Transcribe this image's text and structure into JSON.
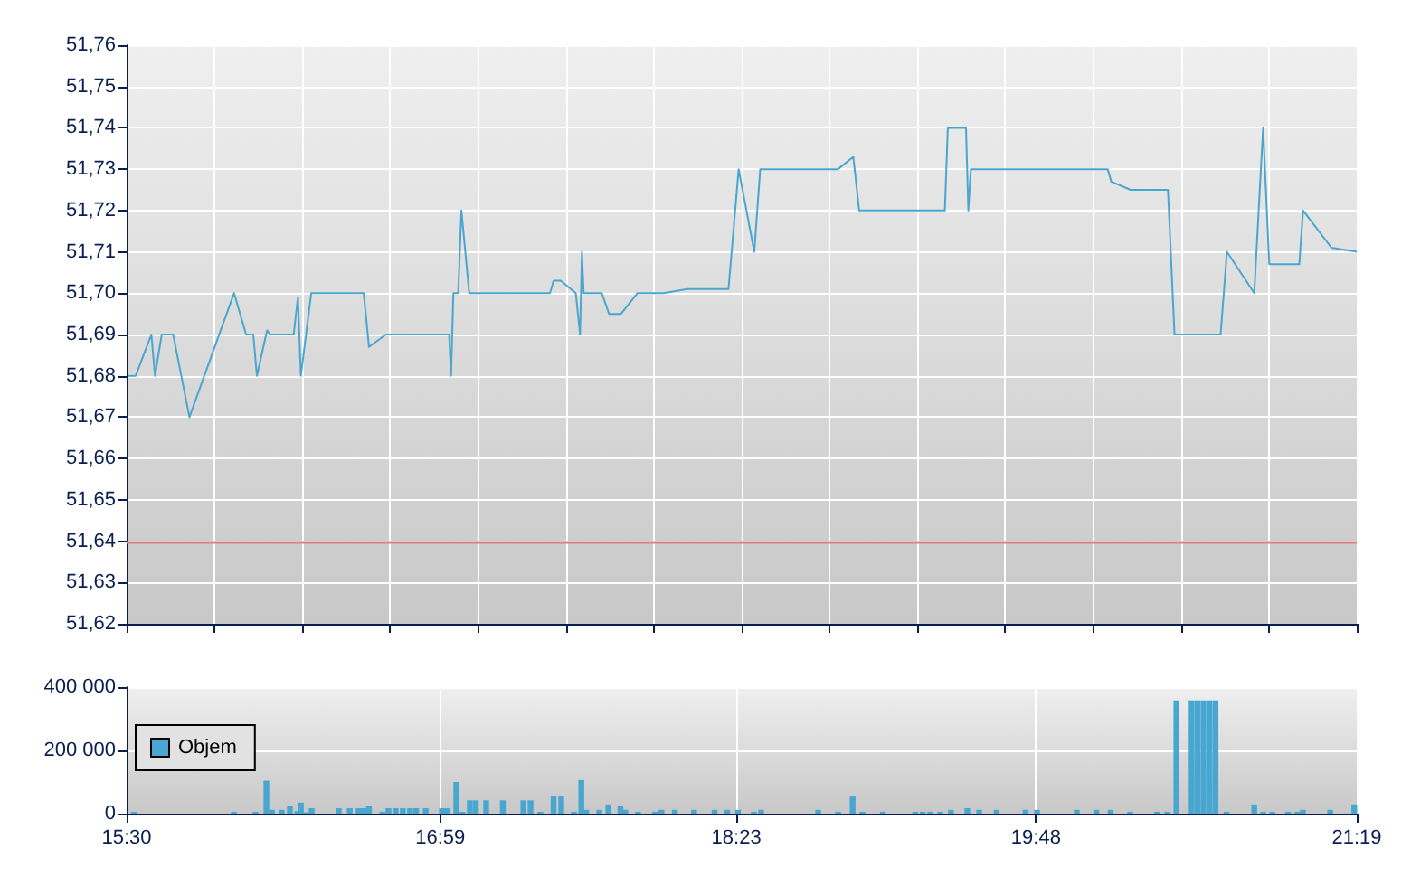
{
  "chart_data": [
    {
      "type": "line",
      "color": "#4aa6cf",
      "x": [
        15.506,
        15.543,
        15.617,
        15.634,
        15.666,
        15.72,
        15.797,
        16.008,
        16.065,
        16.099,
        16.116,
        16.164,
        16.179,
        16.29,
        16.31,
        16.324,
        16.373,
        16.621,
        16.646,
        16.726,
        17.025,
        17.034,
        17.045,
        17.068,
        17.083,
        17.12,
        17.41,
        17.439,
        17.502,
        17.519,
        17.553,
        17.624,
        17.644,
        17.653,
        17.661,
        17.747,
        17.781,
        17.838,
        17.915,
        18.038,
        18.152,
        18.346,
        18.394,
        18.468,
        18.496,
        18.779,
        18.864,
        18.936,
        18.964,
        19.369,
        19.383,
        19.469,
        19.48,
        19.492,
        20.139,
        20.156,
        20.247,
        20.424,
        20.455,
        20.673,
        20.703,
        20.832,
        20.874,
        20.903,
        21.045,
        21.063,
        21.197,
        21.3167
      ],
      "values": [
        51.68,
        51.68,
        51.69,
        51.68,
        51.69,
        51.69,
        51.67,
        51.7,
        51.69,
        51.69,
        51.68,
        51.691,
        51.69,
        51.69,
        51.699,
        51.68,
        51.7,
        51.7,
        51.687,
        51.69,
        51.69,
        51.68,
        51.7,
        51.7,
        51.72,
        51.7,
        51.7,
        51.7,
        51.7,
        51.703,
        51.703,
        51.7,
        51.69,
        51.71,
        51.7,
        51.7,
        51.695,
        51.695,
        51.7,
        51.7,
        51.701,
        51.701,
        51.73,
        51.71,
        51.73,
        51.73,
        51.73,
        51.733,
        51.72,
        51.72,
        51.74,
        51.74,
        51.72,
        51.73,
        51.73,
        51.727,
        51.725,
        51.725,
        51.69,
        51.69,
        51.71,
        51.7,
        51.74,
        51.707,
        51.707,
        51.72,
        51.711,
        51.71
      ],
      "xlim": [
        15.5,
        21.3167
      ],
      "xticks": [
        {
          "value": 15.5,
          "label": null
        },
        {
          "value": 15.9155,
          "label": null
        },
        {
          "value": 16.331,
          "label": null
        },
        {
          "value": 16.7464,
          "label": null
        },
        {
          "value": 17.1619,
          "label": null
        },
        {
          "value": 17.5774,
          "label": null
        },
        {
          "value": 17.9929,
          "label": null
        },
        {
          "value": 18.4083,
          "label": null
        },
        {
          "value": 18.8238,
          "label": null
        },
        {
          "value": 19.2393,
          "label": null
        },
        {
          "value": 19.6548,
          "label": null
        },
        {
          "value": 20.0702,
          "label": null
        },
        {
          "value": 20.4857,
          "label": null
        },
        {
          "value": 20.9012,
          "label": null
        },
        {
          "value": 21.3167,
          "label": null
        }
      ],
      "ylim": [
        51.62,
        51.76
      ],
      "yticks": [
        {
          "value": 51.62,
          "label": "51,62"
        },
        {
          "value": 51.63,
          "label": "51,63"
        },
        {
          "value": 51.64,
          "label": "51,64"
        },
        {
          "value": 51.65,
          "label": "51,65"
        },
        {
          "value": 51.66,
          "label": "51,66"
        },
        {
          "value": 51.67,
          "label": "51,67"
        },
        {
          "value": 51.68,
          "label": "51,68"
        },
        {
          "value": 51.69,
          "label": "51,69"
        },
        {
          "value": 51.7,
          "label": "51,70"
        },
        {
          "value": 51.71,
          "label": "51,71"
        },
        {
          "value": 51.72,
          "label": "51,72"
        },
        {
          "value": 51.73,
          "label": "51,73"
        },
        {
          "value": 51.74,
          "label": "51,74"
        },
        {
          "value": 51.75,
          "label": "51,75"
        },
        {
          "value": 51.76,
          "label": "51,76"
        }
      ],
      "tick_labels": "y",
      "grid": true,
      "ref_lines": [
        {
          "axis": "y",
          "value": 51.64,
          "color": "#d98080"
        }
      ]
    },
    {
      "type": "bar",
      "legend": "left",
      "grid": true,
      "series": [
        {
          "name": "Objem",
          "color": "#47a7d0",
          "x": [
            15.534,
            16.007,
            16.11,
            16.161,
            16.187,
            16.233,
            16.272,
            16.307,
            16.324,
            16.349,
            16.375,
            16.503,
            16.555,
            16.597,
            16.621,
            16.646,
            16.709,
            16.738,
            16.772,
            16.806,
            16.84,
            16.869,
            16.914,
            16.991,
            17.014,
            17.059,
            17.088,
            17.123,
            17.151,
            17.2,
            17.279,
            17.376,
            17.41,
            17.456,
            17.519,
            17.555,
            17.615,
            17.65,
            17.673,
            17.735,
            17.778,
            17.835,
            17.858,
            17.918,
            17.998,
            18.029,
            18.092,
            18.183,
            18.28,
            18.34,
            18.391,
            18.466,
            18.5,
            18.77,
            18.864,
            18.933,
            18.979,
            19.076,
            19.229,
            19.264,
            19.3,
            19.347,
            19.398,
            19.475,
            19.531,
            19.614,
            19.751,
            19.805,
            19.993,
            20.085,
            20.153,
            20.245,
            20.373,
            20.421,
            20.464,
            20.536,
            20.564,
            20.592,
            20.621,
            20.649,
            20.701,
            20.832,
            20.874,
            20.917,
            20.992,
            21.037,
            21.062,
            21.191,
            21.305
          ],
          "values": [
            6000,
            6000,
            6000,
            104000,
            12000,
            12000,
            23000,
            8000,
            35000,
            4000,
            17000,
            17000,
            17000,
            17000,
            17000,
            25000,
            6000,
            17000,
            17000,
            17000,
            17000,
            17000,
            17000,
            17000,
            17000,
            100000,
            6000,
            42000,
            42000,
            42000,
            42000,
            42000,
            42000,
            6000,
            54000,
            54000,
            6000,
            106000,
            12000,
            12000,
            29000,
            25000,
            12000,
            6000,
            6000,
            12000,
            12000,
            12000,
            12000,
            12000,
            12000,
            6000,
            12000,
            12000,
            6000,
            54000,
            6000,
            6000,
            6000,
            6000,
            6000,
            6000,
            12000,
            17000,
            12000,
            12000,
            12000,
            12000,
            12000,
            12000,
            12000,
            6000,
            6000,
            6000,
            358000,
            358000,
            358000,
            358000,
            358000,
            358000,
            6000,
            29000,
            6000,
            6000,
            6000,
            6000,
            12000,
            12000,
            29000
          ]
        }
      ],
      "xlim": [
        15.5,
        21.3167
      ],
      "xticks": [
        {
          "value": 15.5,
          "label": "15:30"
        },
        {
          "value": 16.9833,
          "label": "16:59"
        },
        {
          "value": 18.3833,
          "label": "18:23"
        },
        {
          "value": 19.8,
          "label": "19:48"
        },
        {
          "value": 21.3167,
          "label": "21:19"
        }
      ],
      "ylim": [
        0,
        400000
      ],
      "yticks": [
        0,
        {
          "value": 200000,
          "label": "200 000"
        },
        {
          "value": 400000,
          "label": "400 000"
        }
      ]
    }
  ]
}
